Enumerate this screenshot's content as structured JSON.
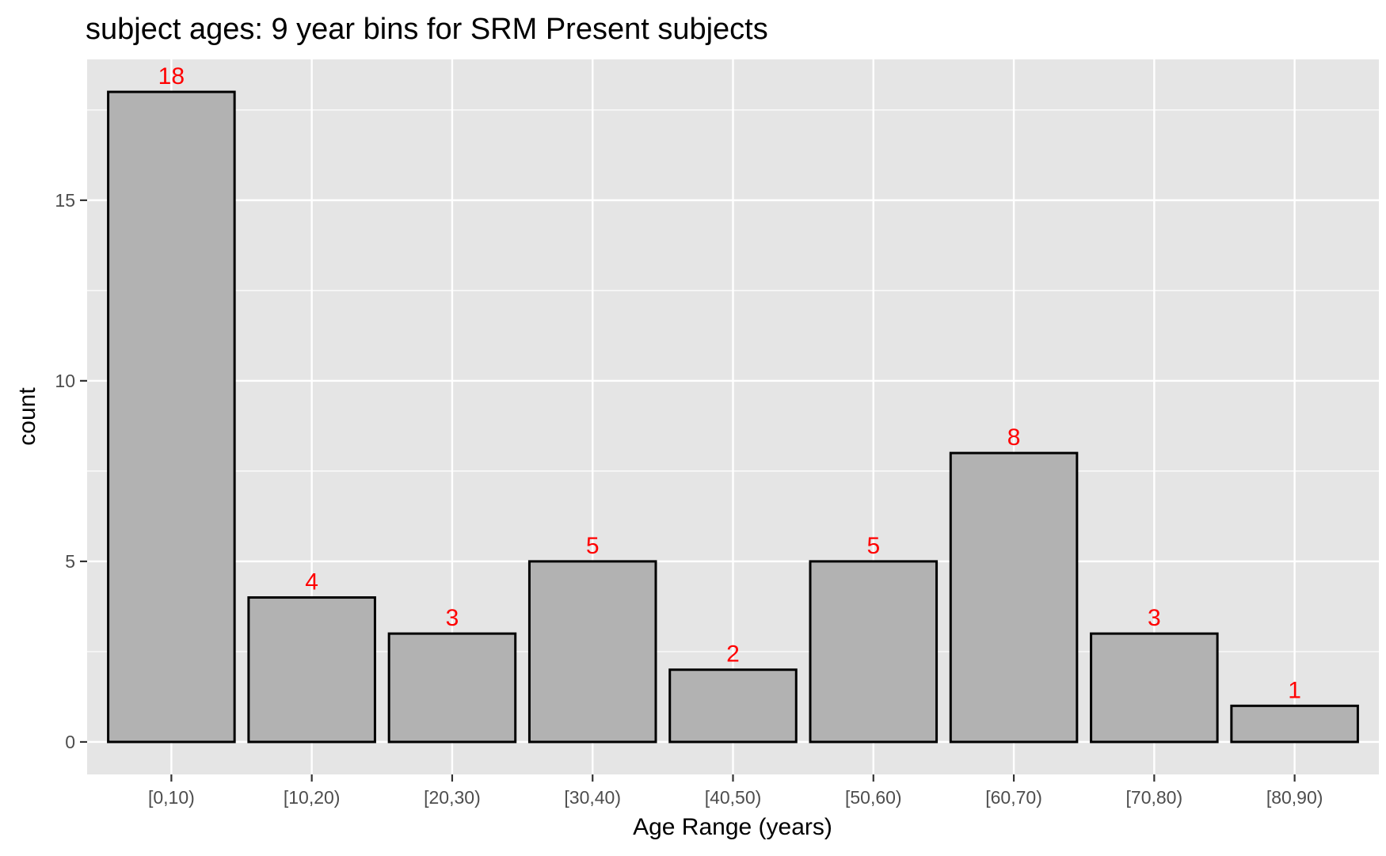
{
  "chart_data": {
    "type": "bar",
    "title": "subject ages: 9 year bins for SRM Present subjects",
    "xlabel": "Age Range (years)",
    "ylabel": "count",
    "categories": [
      "[0,10)",
      "[10,20)",
      "[20,30)",
      "[30,40)",
      "[40,50)",
      "[50,60)",
      "[60,70)",
      "[70,80)",
      "[80,90)"
    ],
    "values": [
      18,
      4,
      3,
      5,
      2,
      5,
      8,
      3,
      1
    ],
    "ylim": [
      -0.9,
      18.9
    ],
    "yticks": [
      0,
      5,
      10,
      15
    ],
    "grid": true,
    "legend": "none",
    "colors": {
      "panel_background": "#e5e5e5",
      "grid": "#ffffff",
      "bar_fill": "#b2b2b2",
      "bar_outline": "#000000",
      "data_label": "#ff0000",
      "tick": "#333333"
    }
  }
}
